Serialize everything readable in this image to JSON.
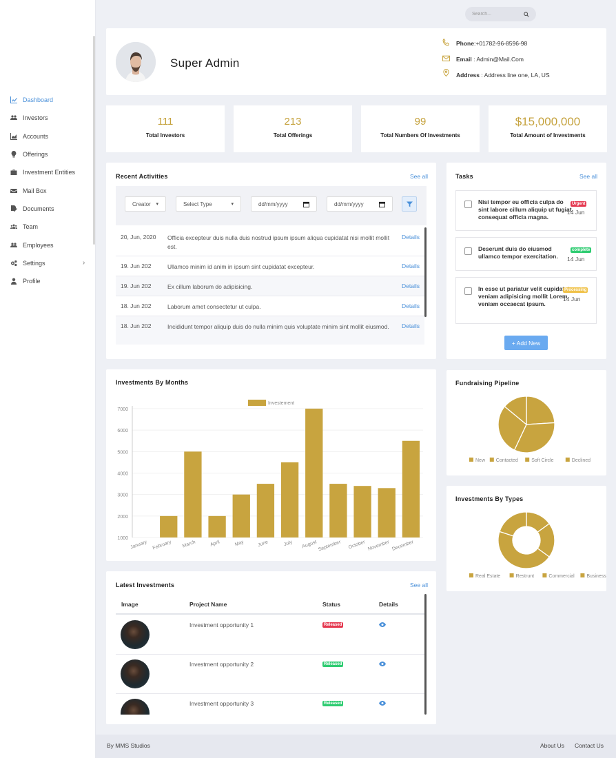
{
  "nav": {
    "items": [
      {
        "label": "Dashboard",
        "icon": "chart-line-icon",
        "active": true
      },
      {
        "label": "Investors",
        "icon": "users-icon"
      },
      {
        "label": "Accounts",
        "icon": "chart-area-icon"
      },
      {
        "label": "Offerings",
        "icon": "lightbulb-icon"
      },
      {
        "label": "Investment Entities",
        "icon": "briefcase-icon"
      },
      {
        "label": "Mail Box",
        "icon": "envelope-icon"
      },
      {
        "label": "Documents",
        "icon": "file-signature-icon"
      },
      {
        "label": "Team",
        "icon": "team-icon"
      },
      {
        "label": "Employees",
        "icon": "employees-icon"
      },
      {
        "label": "Settings",
        "icon": "cogs-icon",
        "chevron": "›"
      },
      {
        "label": "Profile",
        "icon": "user-icon"
      }
    ]
  },
  "search": {
    "placeholder": "Search..."
  },
  "profile": {
    "name": "Super Admin",
    "phone_label": "Phone",
    "phone": ":+01782-96-8596-98",
    "email_label": "Email",
    "email": ": Admin@Mail.Com",
    "address_label": "Address",
    "address": ": Address line one, LA, US"
  },
  "stats": [
    {
      "value": "111",
      "label": "Total Investors"
    },
    {
      "value": "213",
      "label": "Total Offerings"
    },
    {
      "value": "99",
      "label": "Total Numbers Of Investments"
    },
    {
      "value": "$15,000,000",
      "label": "Total Amount of Investments"
    }
  ],
  "activities": {
    "title": "Recent Activities",
    "see_all": "See all",
    "filters": {
      "creator": "Creator",
      "type": "Select Type",
      "date_from": "dd/mm/yyyy",
      "date_to": "dd/mm/yyyy"
    },
    "rows": [
      {
        "date": "20, Jun, 2020",
        "text": "Officia excepteur duis nulla duis nostrud ipsum ipsum aliqua cupidatat nisi mollit mollit est.",
        "link": "Details"
      },
      {
        "date": "19. Jun 202",
        "text": "Ullamco minim id anim in ipsum sint cupidatat excepteur.",
        "link": "Details"
      },
      {
        "date": "19. Jun 202",
        "text": "Ex cillum laborum do adipisicing.",
        "link": "Details"
      },
      {
        "date": "18. Jun 202",
        "text": "Laborum amet consectetur ut culpa.",
        "link": "Details"
      },
      {
        "date": "18. Jun 202",
        "text": "Incididunt tempor aliquip duis do nulla minim quis voluptate minim sint mollit eiusmod.",
        "link": "Details"
      }
    ]
  },
  "tasks": {
    "title": "Tasks",
    "see_all": "See all",
    "items": [
      {
        "text": "Nisi tempor eu officia culpa do sint labore cillum aliquip ut fugiat consequat officia magna.",
        "badge": "Urgent",
        "badge_color": "#e53950",
        "date": "14 Jun"
      },
      {
        "text": "Deserunt duis do eiusmod ullamco tempor exercitation.",
        "badge": "complete",
        "badge_color": "#2ecc71",
        "date": "14 Jun"
      },
      {
        "text": "In esse ut pariatur velit cupidatat veniam adipisicing mollit Lorem veniam occaecat ipsum.",
        "badge": "Processing",
        "badge_color": "#f0c24a",
        "date": "14 Jun"
      }
    ],
    "add_label": "+ Add New"
  },
  "chart_data": [
    {
      "type": "bar",
      "title": "Investments By Months",
      "categories": [
        "January",
        "February",
        "March",
        "April",
        "May",
        "June",
        "July",
        "August",
        "September",
        "October",
        "November",
        "December"
      ],
      "series": [
        {
          "name": "Investement",
          "values": [
            1000,
            2000,
            5000,
            2000,
            3000,
            3500,
            4500,
            7000,
            3500,
            3400,
            3300,
            5500
          ],
          "color": "#c8a43f"
        }
      ],
      "yticks": [
        1000,
        2000,
        3000,
        4000,
        5000,
        6000,
        7000
      ],
      "ylim": [
        1000,
        7000
      ],
      "legend": "top"
    },
    {
      "type": "pie",
      "title": "Fundraising Pipeline",
      "categories": [
        "New",
        "Contacted",
        "Soft Circle",
        "Declined"
      ],
      "values": [
        24,
        33,
        29,
        14
      ],
      "color": "#c8a43f",
      "legend": "bottom"
    },
    {
      "type": "pie",
      "variant": "doughnut",
      "title": "Investments By Types",
      "categories": [
        "Real Estate",
        "Restrunt",
        "Commercial",
        "Business"
      ],
      "values": [
        15,
        20,
        45,
        20
      ],
      "color": "#c8a43f",
      "legend": "bottom"
    }
  ],
  "latest": {
    "title": "Latest Investments",
    "see_all": "See all",
    "headers": [
      "Image",
      "Project Name",
      "Status",
      "Details"
    ],
    "rows": [
      {
        "name": "Investment opportunity 1",
        "status": "Released",
        "status_color": "#e53950"
      },
      {
        "name": "Investment opportunity 2",
        "status": "Released",
        "status_color": "#2ecc71"
      },
      {
        "name": "Investment opportunity 3",
        "status": "Released",
        "status_color": "#2ecc71"
      }
    ]
  },
  "footer": {
    "credit": "By MMS Studios",
    "about": "About Us",
    "contact": "Contact Us"
  }
}
